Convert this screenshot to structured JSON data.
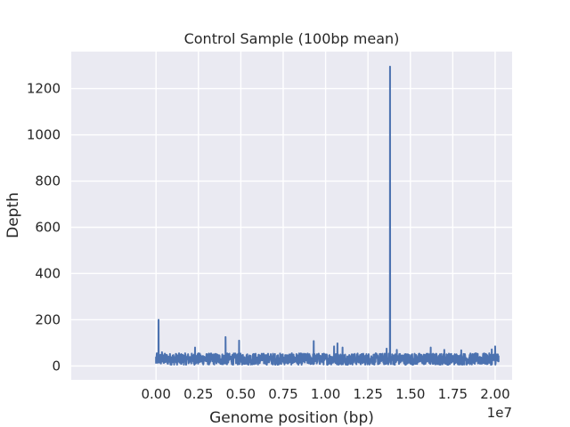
{
  "chart_data": {
    "type": "line",
    "title": "Control Sample (100bp mean)",
    "xlabel": "Genome position (bp)",
    "ylabel": "Depth",
    "x_offset_label": "1e7",
    "xlim": [
      -5000000,
      21000000
    ],
    "ylim": [
      -60,
      1360
    ],
    "x_ticks": [
      0,
      2500000,
      5000000,
      7500000,
      10000000,
      12500000,
      15000000,
      17500000,
      20000000
    ],
    "x_tick_labels": [
      "0.00",
      "0.25",
      "0.50",
      "0.75",
      "1.00",
      "1.25",
      "1.50",
      "1.75",
      "2.00"
    ],
    "y_ticks": [
      0,
      200,
      400,
      600,
      800,
      1000,
      1200
    ],
    "y_tick_labels": [
      "0",
      "200",
      "400",
      "600",
      "800",
      "1000",
      "1200"
    ],
    "grid": true,
    "background_color": "#eaeaf2",
    "series": [
      {
        "color": "#4c72b0",
        "baseline_band": [
          5,
          55
        ],
        "x_range": [
          0,
          20200000
        ],
        "points": [
          [
            0,
            10
          ],
          [
            100000,
            55
          ],
          [
            150000,
            200
          ],
          [
            200000,
            40
          ],
          [
            350000,
            60
          ],
          [
            2300000,
            80
          ],
          [
            2500000,
            55
          ],
          [
            4100000,
            125
          ],
          [
            4150000,
            45
          ],
          [
            4900000,
            110
          ],
          [
            4950000,
            45
          ],
          [
            9300000,
            108
          ],
          [
            9350000,
            45
          ],
          [
            10500000,
            85
          ],
          [
            10700000,
            98
          ],
          [
            10750000,
            45
          ],
          [
            11000000,
            80
          ],
          [
            13600000,
            75
          ],
          [
            13800000,
            1295
          ],
          [
            13830000,
            40
          ],
          [
            14200000,
            70
          ],
          [
            16200000,
            80
          ],
          [
            17000000,
            70
          ],
          [
            18000000,
            68
          ],
          [
            19800000,
            72
          ],
          [
            20000000,
            85
          ],
          [
            20100000,
            50
          ],
          [
            20200000,
            20
          ]
        ]
      }
    ]
  }
}
